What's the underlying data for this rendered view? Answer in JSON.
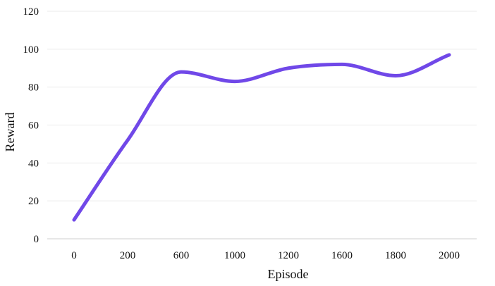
{
  "chart_data": {
    "type": "line",
    "title": "",
    "xlabel": "Episode",
    "ylabel": "Reward",
    "categories": [
      "0",
      "200",
      "600",
      "1000",
      "1200",
      "1600",
      "1800",
      "2000"
    ],
    "series": [
      {
        "values": [
          10,
          52,
          88,
          83,
          90,
          92,
          86,
          97
        ]
      }
    ],
    "ylim": [
      0,
      120
    ],
    "yticks": [
      0,
      20,
      40,
      60,
      80,
      100,
      120
    ],
    "grid": true,
    "legend": "none",
    "colors": {
      "line": "#7048e8",
      "grid": "#ebebeb"
    }
  }
}
